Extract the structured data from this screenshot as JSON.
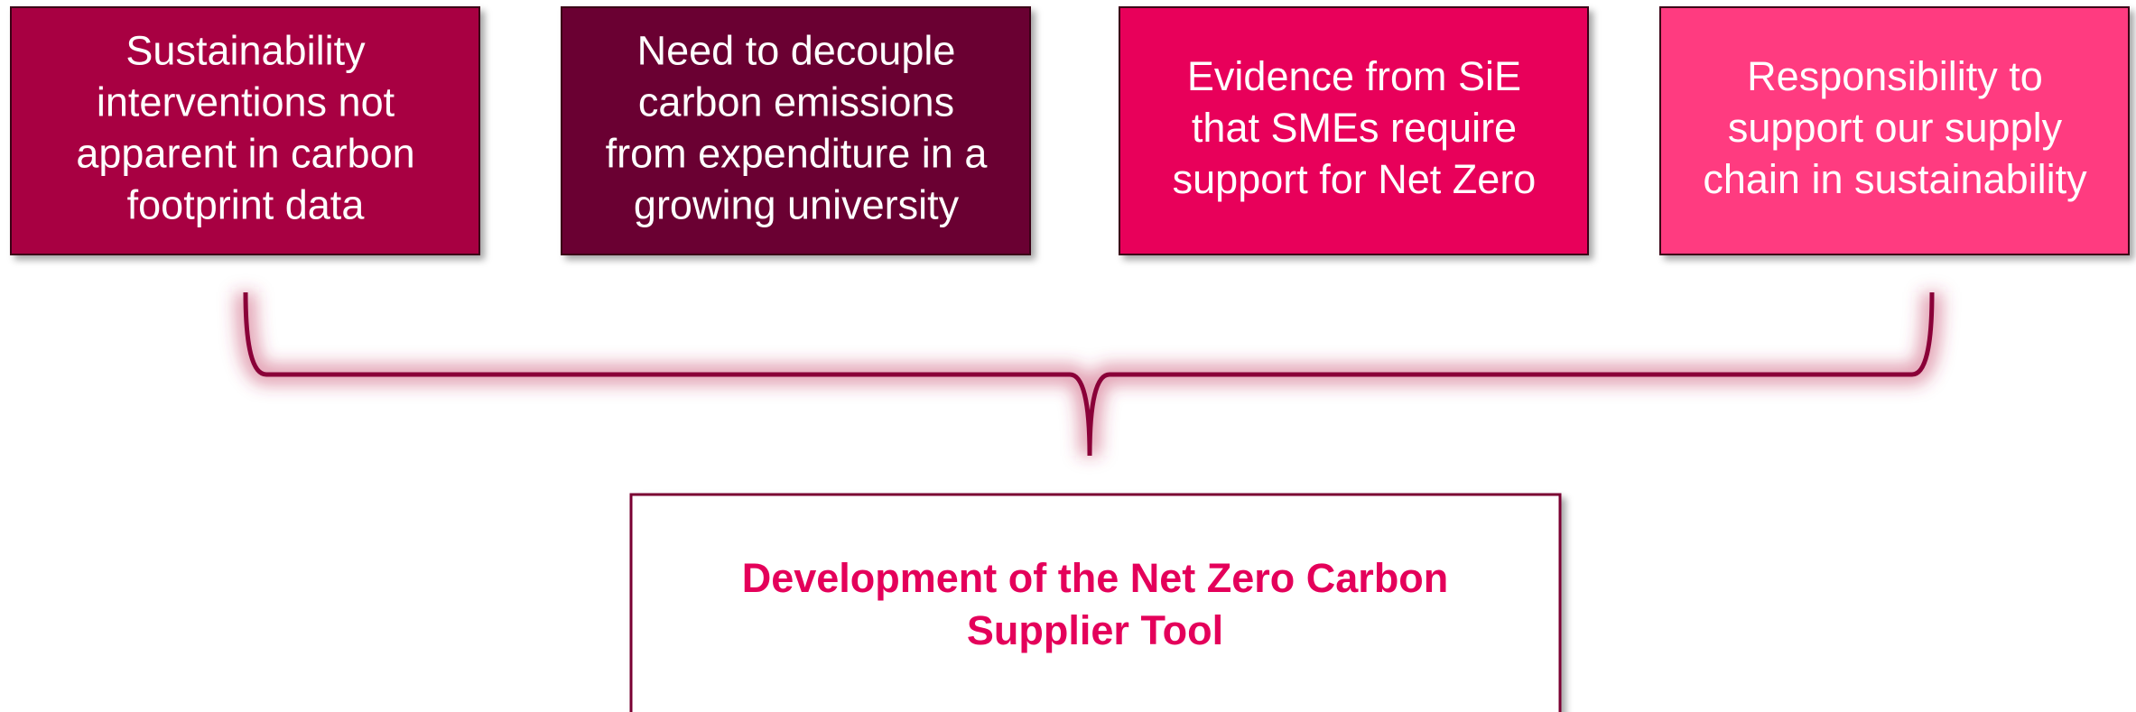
{
  "boxes": [
    {
      "lines": [
        "Sustainability",
        "interventions not",
        "apparent in carbon",
        "footprint data"
      ]
    },
    {
      "lines": [
        "Need to decouple",
        "carbon emissions",
        "from expenditure in a",
        "growing university"
      ]
    },
    {
      "lines": [
        "Evidence from SiE",
        "that SMEs require",
        "support for Net Zero"
      ]
    },
    {
      "lines": [
        "Responsibility to",
        "support our supply",
        "chain in sustainability"
      ]
    }
  ],
  "outcome": {
    "lines": [
      "Development of the Net Zero Carbon",
      "Supplier Tool"
    ]
  }
}
